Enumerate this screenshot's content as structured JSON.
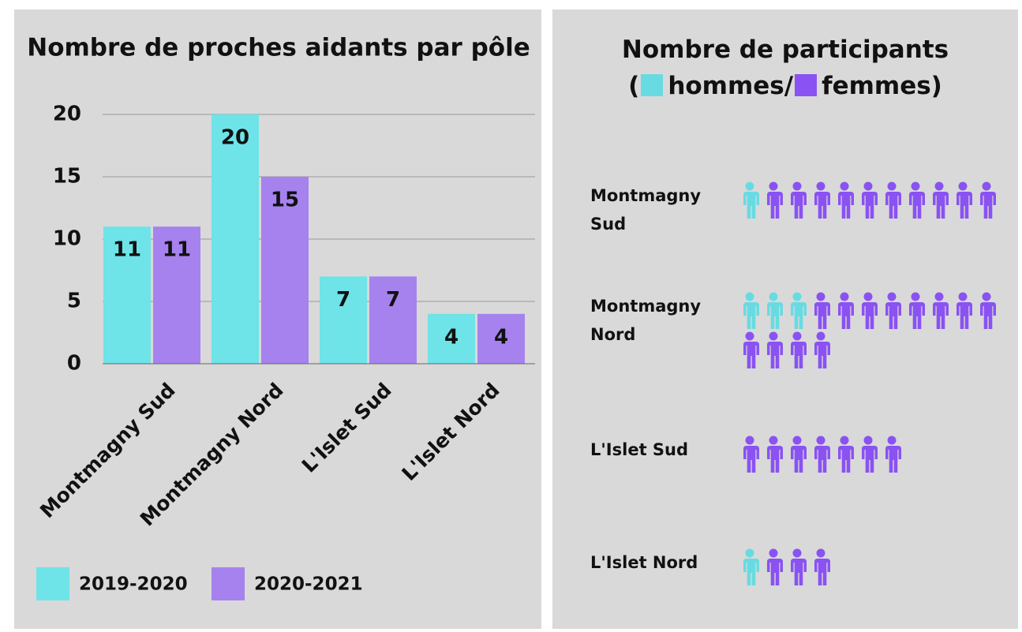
{
  "chart_data": [
    {
      "type": "bar",
      "title": "Nombre de proches aidants par pôle",
      "categories": [
        "Montmagny Sud",
        "Montmagny Nord",
        "L'Islet Sud",
        "L'Islet Nord"
      ],
      "series": [
        {
          "name": "2019-2020",
          "color": "#6ee3e8",
          "values": [
            11,
            20,
            7,
            4
          ]
        },
        {
          "name": "2020-2021",
          "color": "#a682ee",
          "values": [
            11,
            15,
            7,
            4
          ]
        }
      ],
      "ylim": [
        0,
        20
      ],
      "yticks": [
        0,
        5,
        10,
        15,
        20
      ],
      "grid": true,
      "legend": "bottom"
    },
    {
      "type": "pictogram",
      "title": "Nombre de participants",
      "title_open": "(",
      "categories": [
        "Montmagny Sud",
        "Montmagny Nord",
        "L'Islet Sud",
        "L'Islet Nord"
      ],
      "series": [
        {
          "name": "hommes/",
          "color": "#68dbe2",
          "values": [
            1,
            3,
            0,
            1
          ]
        },
        {
          "name": "femmes)",
          "color": "#8a52f2",
          "values": [
            10,
            12,
            7,
            3
          ]
        }
      ]
    }
  ]
}
